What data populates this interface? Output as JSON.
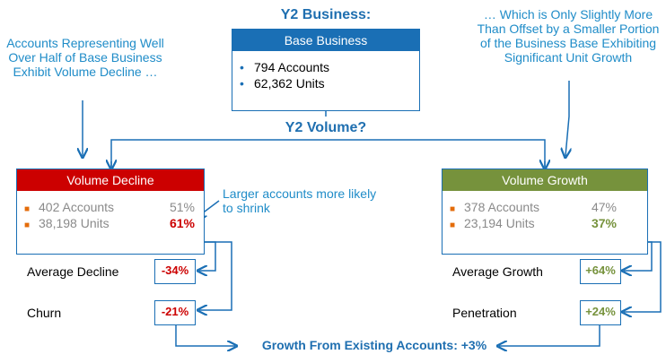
{
  "title": "Y2 Business:",
  "left_note": "Accounts Representing Well Over Half of Base Business Exhibit Volume Decline …",
  "right_note": "… Which is Only Slightly More Than Offset by a Smaller Portion of the Business Base Exhibiting Significant Unit Growth",
  "base": {
    "header": "Base Business",
    "items": [
      "794 Accounts",
      "62,362 Units"
    ]
  },
  "volume_question": "Y2 Volume?",
  "decline": {
    "header": "Volume Decline",
    "rows": [
      {
        "label": "402 Accounts",
        "pct": "51%"
      },
      {
        "label": "38,198 Units",
        "pct": "61%"
      }
    ],
    "annotation": "Larger accounts more likely to shrink",
    "metrics": [
      {
        "label": "Average Decline",
        "value": "-34%"
      },
      {
        "label": "Churn",
        "value": "-21%"
      }
    ]
  },
  "growth": {
    "header": "Volume Growth",
    "rows": [
      {
        "label": "378 Accounts",
        "pct": "47%"
      },
      {
        "label": "23,194 Units",
        "pct": "37%"
      }
    ],
    "metrics": [
      {
        "label": "Average Growth",
        "value": "+64%"
      },
      {
        "label": "Penetration",
        "value": "+24%"
      }
    ]
  },
  "bottom": "Growth From Existing Accounts: +3%",
  "colors": {
    "blue": "#1a6fb5",
    "red": "#cc0000",
    "green": "#76923c",
    "grey_text": "#8a8a8a",
    "orange_bullet": "#e46c0a"
  }
}
